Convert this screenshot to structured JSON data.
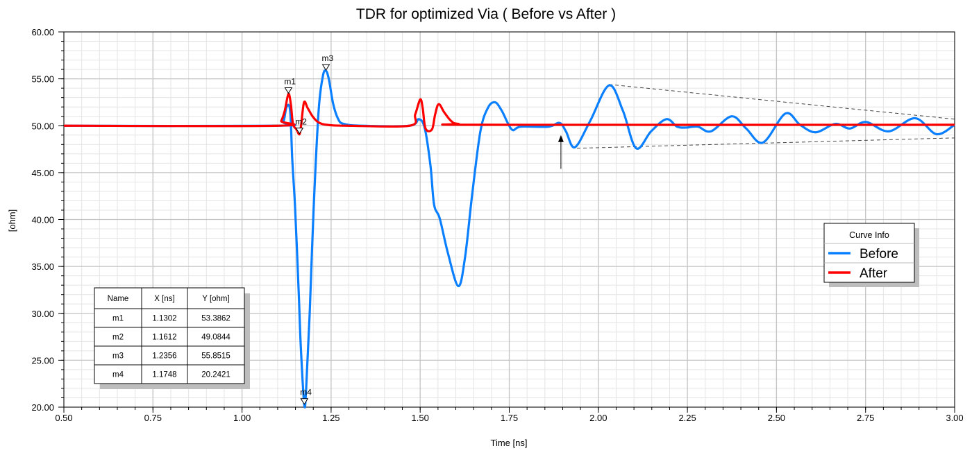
{
  "chart_data": {
    "type": "line",
    "title": "TDR for optimized Via ( Before vs After )",
    "xlabel": "Time [ns]",
    "ylabel": "[ohm]",
    "xlim": [
      0.5,
      3.0
    ],
    "ylim": [
      20,
      60
    ],
    "xticks": [
      "0.50",
      "0.75",
      "1.00",
      "1.25",
      "1.50",
      "1.75",
      "2.00",
      "2.25",
      "2.50",
      "2.75",
      "3.00"
    ],
    "yticks": [
      "20.00",
      "25.00",
      "30.00",
      "35.00",
      "40.00",
      "45.00",
      "50.00",
      "55.00",
      "60.00"
    ],
    "grid": true,
    "legend": {
      "title": "Curve Info",
      "placement": "right"
    },
    "series": [
      {
        "name": "Before",
        "color": "#0A7FFF",
        "x": [
          0.5,
          1.1,
          1.116,
          1.125,
          1.135,
          1.141,
          1.149,
          1.159,
          1.165,
          1.1748,
          1.18,
          1.19,
          1.201,
          1.215,
          1.227,
          1.2356,
          1.244,
          1.256,
          1.27,
          1.285,
          1.334,
          1.47,
          1.496,
          1.513,
          1.529,
          1.539,
          1.555,
          1.578,
          1.607,
          1.626,
          1.646,
          1.669,
          1.69,
          1.71,
          1.729,
          1.757,
          1.782,
          1.86,
          1.891,
          1.909,
          1.934,
          1.977,
          2.03,
          2.069,
          2.106,
          2.148,
          2.191,
          2.221,
          2.246,
          2.279,
          2.316,
          2.374,
          2.415,
          2.462,
          2.525,
          2.566,
          2.61,
          2.665,
          2.706,
          2.751,
          2.815,
          2.889,
          2.949,
          3.0
        ],
        "y": [
          50,
          50,
          50.4,
          52.0,
          51.6,
          46.4,
          41.2,
          32.3,
          26.4,
          20.24,
          22.0,
          30.1,
          41.2,
          51.6,
          55.3,
          55.85,
          54.9,
          52.3,
          50.7,
          50.2,
          50,
          50,
          50.7,
          49.7,
          45.7,
          41.6,
          40.1,
          36.4,
          32.9,
          36.0,
          42.7,
          49.4,
          51.9,
          52.5,
          51.6,
          49.6,
          49.9,
          49.9,
          50.3,
          49.4,
          47.7,
          50.5,
          54.3,
          51.6,
          47.6,
          49.4,
          50.7,
          49.9,
          49.8,
          49.9,
          49.4,
          51.0,
          49.7,
          48.2,
          51.3,
          50.1,
          49.3,
          50.2,
          49.7,
          50.4,
          49.4,
          50.8,
          49.1,
          50.1
        ]
      },
      {
        "name": "After",
        "color": "#FF0000",
        "x": [
          0.5,
          1.1,
          1.11,
          1.12,
          1.1302,
          1.137,
          1.143,
          1.153,
          1.1612,
          1.166,
          1.174,
          1.184,
          1.198,
          1.213,
          1.237,
          1.295,
          1.47,
          1.486,
          1.5,
          1.507,
          1.515,
          1.533,
          1.542,
          1.552,
          1.568,
          1.587,
          1.607,
          1.685,
          3.0
        ],
        "y": [
          50,
          50,
          50.5,
          51.6,
          53.3862,
          52.3,
          50.2,
          49.6,
          49.0844,
          50.1,
          52.5,
          51.9,
          51.0,
          50.4,
          50.1,
          50.0,
          50.0,
          51.2,
          52.8,
          51.9,
          49.7,
          49.6,
          51.2,
          52.3,
          51.4,
          50.5,
          50.2,
          50.1,
          50.1
        ]
      }
    ],
    "markers": {
      "columns": [
        "Name",
        "X [ns]",
        "Y [ohm]"
      ],
      "rows": [
        [
          "m1",
          "1.1302",
          "53.3862"
        ],
        [
          "m2",
          "1.1612",
          "49.0844"
        ],
        [
          "m3",
          "1.2356",
          "55.8515"
        ],
        [
          "m4",
          "1.1748",
          "20.2421"
        ]
      ]
    },
    "annotations": {
      "envelope_upper": {
        "x": [
          2.03,
          3.0
        ],
        "y": [
          54.4,
          50.7
        ]
      },
      "envelope_lower": {
        "x": [
          1.94,
          3.0
        ],
        "y": [
          47.6,
          48.7
        ]
      },
      "arrow": {
        "x": 1.895,
        "y": [
          45.4,
          49.0
        ]
      }
    }
  }
}
